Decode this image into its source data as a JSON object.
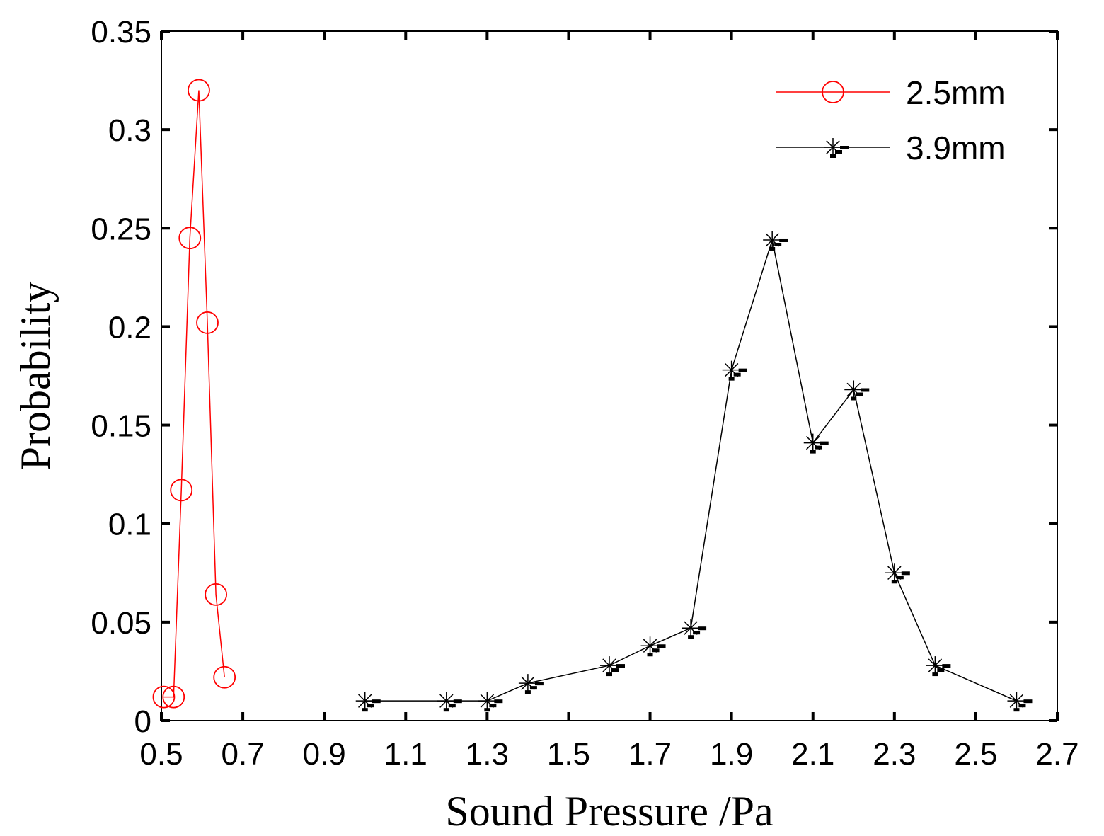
{
  "chart_data": {
    "type": "line",
    "xlabel": "Sound Pressure /Pa",
    "ylabel": "Probability",
    "xlim": [
      0.5,
      2.7
    ],
    "ylim": [
      0,
      0.35
    ],
    "x_ticks": [
      "0.5",
      "0.7",
      "0.9",
      "1.1",
      "1.3",
      "1.5",
      "1.7",
      "1.9",
      "2.1",
      "2.3",
      "2.5",
      "2.7"
    ],
    "y_ticks": [
      "0",
      "0.05",
      "0.1",
      "0.15",
      "0.2",
      "0.25",
      "0.3",
      "0.35"
    ],
    "grid": false,
    "legend_position": "top-right",
    "series": [
      {
        "name": "2.5mm",
        "color": "#ff0000",
        "marker": "circle",
        "x": [
          0.506,
          0.53,
          0.549,
          0.57,
          0.592,
          0.613,
          0.634,
          0.655
        ],
        "y": [
          0.012,
          0.012,
          0.117,
          0.245,
          0.32,
          0.202,
          0.064,
          0.022
        ]
      },
      {
        "name": "3.9mm",
        "color": "#000000",
        "marker": "asterisk",
        "x": [
          1.0,
          1.2,
          1.3,
          1.4,
          1.6,
          1.7,
          1.8,
          1.9,
          2.0,
          2.1,
          2.2,
          2.3,
          2.4,
          2.6
        ],
        "y": [
          0.01,
          0.01,
          0.01,
          0.019,
          0.028,
          0.038,
          0.047,
          0.178,
          0.244,
          0.141,
          0.168,
          0.075,
          0.028,
          0.01
        ]
      }
    ]
  }
}
